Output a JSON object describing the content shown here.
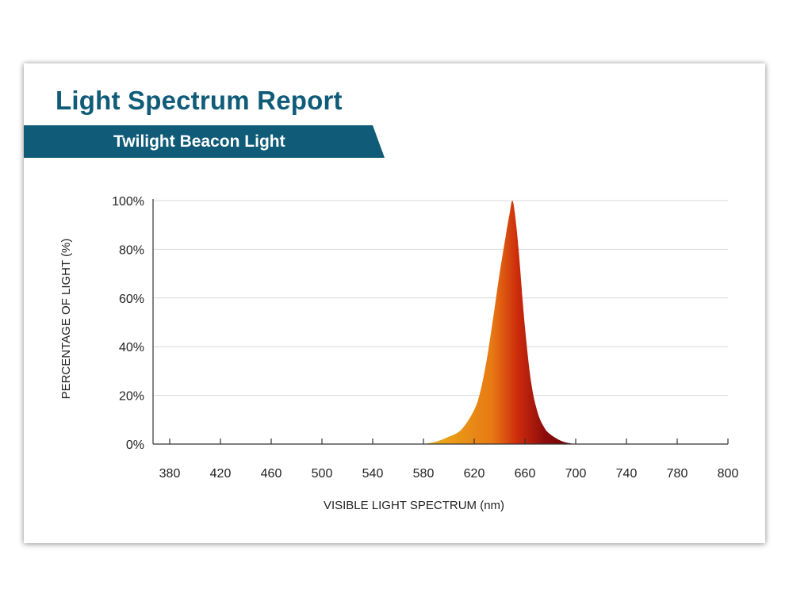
{
  "report": {
    "title": "Light Spectrum Report",
    "subtitle": "Twilight Beacon Light"
  },
  "colors": {
    "title": "#0f5b78",
    "banner": "#0f5b78",
    "gradient": [
      "#e8b21a",
      "#e87914",
      "#cc2b0c",
      "#8e0c0c",
      "#6a0606"
    ]
  },
  "chart_data": {
    "type": "area",
    "title": "",
    "xlabel": "VISIBLE LIGHT SPECTRUM (nm)",
    "ylabel": "PERCENTAGE OF LIGHT (%)",
    "xlim": [
      380,
      800
    ],
    "ylim": [
      0,
      100
    ],
    "x_ticks": [
      380,
      420,
      460,
      500,
      540,
      580,
      620,
      660,
      700,
      740,
      780,
      800
    ],
    "y_ticks": [
      0,
      20,
      40,
      60,
      80,
      100
    ],
    "y_tick_labels": [
      "0%",
      "20%",
      "40%",
      "60%",
      "80%",
      "100%"
    ],
    "grid": true,
    "series": [
      {
        "x": [
          580,
          590,
          600,
          610,
          620,
          625,
          630,
          635,
          640,
          645,
          648,
          650,
          652,
          655,
          660,
          665,
          670,
          675,
          680,
          690,
          700
        ],
        "values": [
          0,
          1,
          3,
          6,
          14,
          22,
          35,
          52,
          70,
          86,
          95,
          100,
          95,
          80,
          48,
          25,
          13,
          7,
          4,
          1,
          0
        ]
      }
    ]
  }
}
